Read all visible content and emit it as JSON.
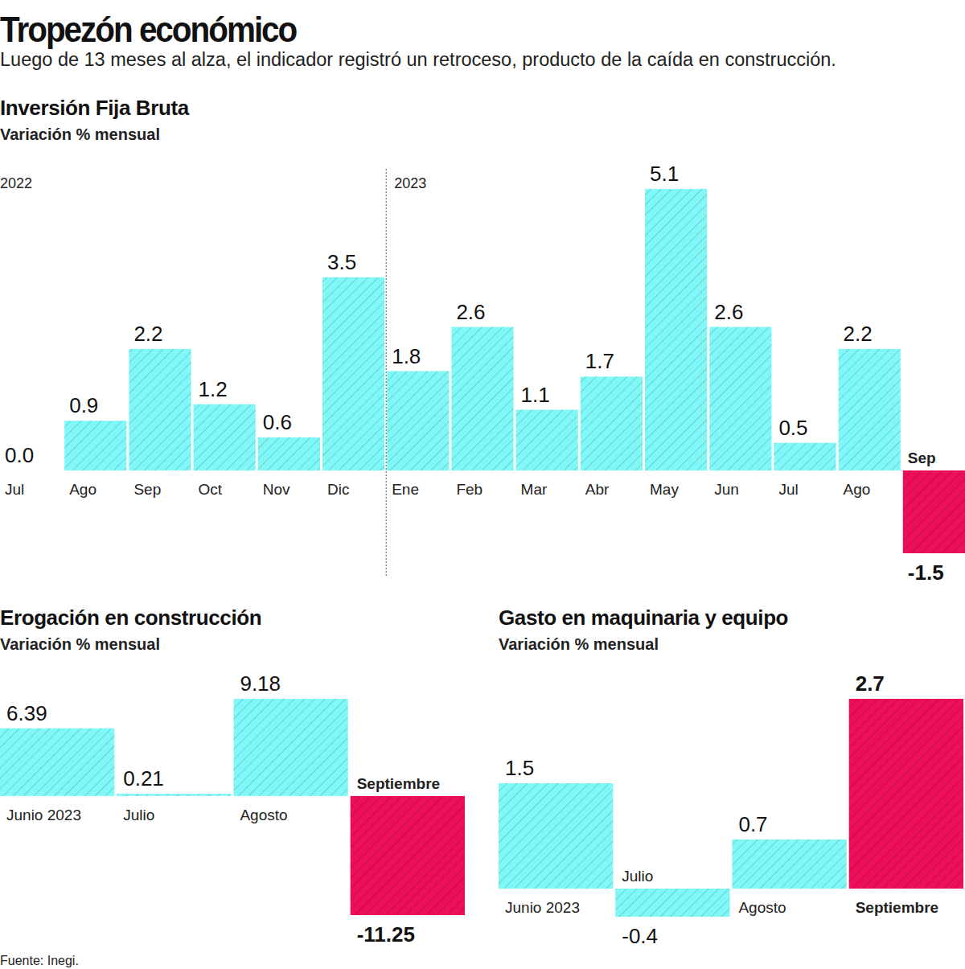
{
  "title": "Tropezón económico",
  "subtitle": "Luego de 13 meses al alza, el indicador registró un retroceso, producto de la caída en construcción.",
  "source": "Fuente: Inegi.",
  "chart_data": [
    {
      "type": "bar",
      "title": "Inversión Fija Bruta",
      "subtitle": "Variación % mensual",
      "categories": [
        "Jul",
        "Ago",
        "Sep",
        "Oct",
        "Nov",
        "Dic",
        "Ene",
        "Feb",
        "Mar",
        "Abr",
        "May",
        "Jun",
        "Jul",
        "Ago",
        "Sep"
      ],
      "values": [
        0.0,
        0.9,
        2.2,
        1.2,
        0.6,
        3.5,
        1.8,
        2.6,
        1.1,
        1.7,
        5.1,
        2.6,
        0.5,
        2.2,
        -1.5
      ],
      "value_labels": [
        "0.0",
        "0.9",
        "2.2",
        "1.2",
        "0.6",
        "3.5",
        "1.8",
        "2.6",
        "1.1",
        "1.7",
        "5.1",
        "2.6",
        "0.5",
        "2.2",
        "-1.5"
      ],
      "colors": [
        "#80f8f8",
        "#80f8f8",
        "#80f8f8",
        "#80f8f8",
        "#80f8f8",
        "#80f8f8",
        "#80f8f8",
        "#80f8f8",
        "#80f8f8",
        "#80f8f8",
        "#80f8f8",
        "#80f8f8",
        "#80f8f8",
        "#80f8f8",
        "#ee0f5c"
      ],
      "data_labels": true,
      "tick_labels": "x",
      "annotations": [
        "2022",
        "2023"
      ]
    },
    {
      "type": "bar",
      "title": "Erogación en construcción",
      "subtitle": "Variación % mensual",
      "categories": [
        "Junio 2023",
        "Julio",
        "Agosto",
        "Septiembre"
      ],
      "values": [
        6.39,
        0.21,
        9.18,
        -11.25
      ],
      "colors": [
        "#80f8f8",
        "#80f8f8",
        "#80f8f8",
        "#ee0f5c"
      ],
      "data_labels": true,
      "tick_labels": "x"
    },
    {
      "type": "bar",
      "title": "Gasto en maquinaria y equipo",
      "subtitle": "Variación % mensual",
      "categories": [
        "Junio 2023",
        "Julio",
        "Agosto",
        "Septiembre"
      ],
      "values": [
        1.5,
        -0.4,
        0.7,
        2.7
      ],
      "colors": [
        "#80f8f8",
        "#80f8f8",
        "#80f8f8",
        "#ee0f5c"
      ],
      "data_labels": true,
      "tick_labels": "x"
    }
  ]
}
